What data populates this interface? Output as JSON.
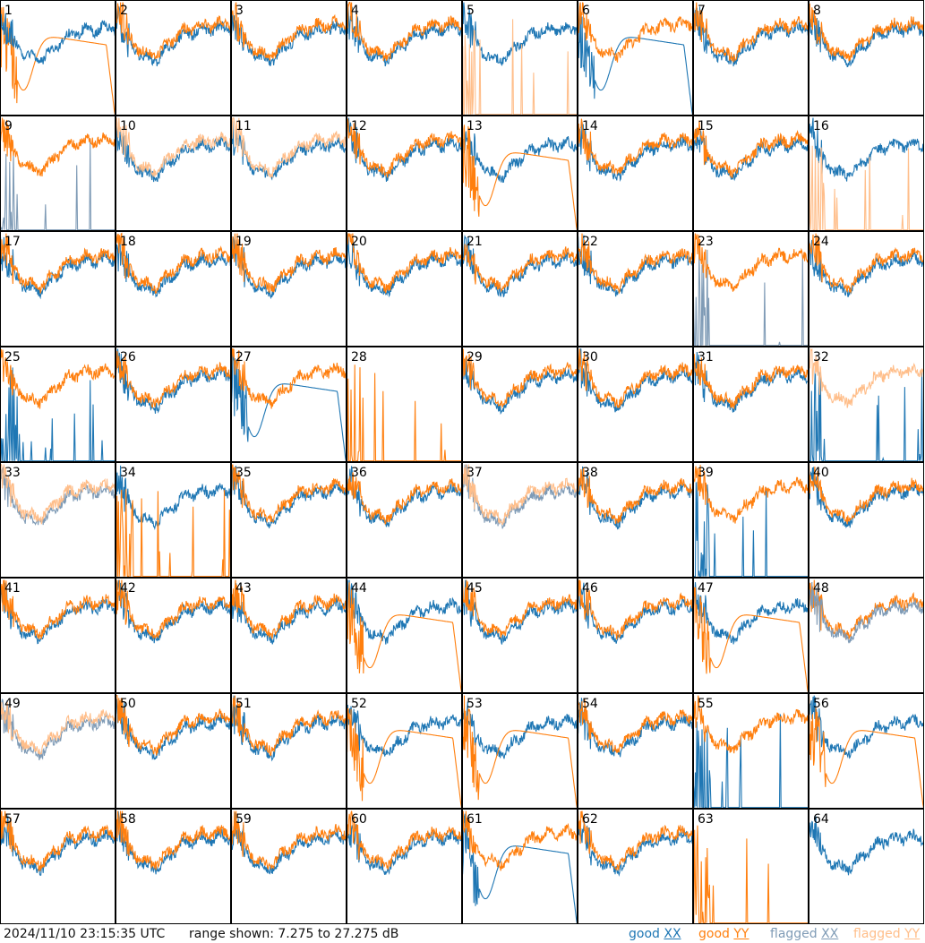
{
  "footer": {
    "timestamp": "2024/11/10 23:15:35 UTC",
    "range_text": "range shown: 7.275 to 27.275 dB"
  },
  "legend": [
    {
      "prefix": "good",
      "pol": "XX",
      "color": "#1f77b4"
    },
    {
      "prefix": "good",
      "pol": "YY",
      "color": "#ff7f0e"
    },
    {
      "prefix": "flagged",
      "pol": "XX",
      "color": "#7f9bb6"
    },
    {
      "prefix": "flagged",
      "pol": "YY",
      "color": "#ffbe8a"
    }
  ],
  "chart_data": {
    "type": "line",
    "layout": "8x8 small multiples of per-tile spectra",
    "ylim_db": [
      7.275,
      27.275
    ],
    "tiles": [
      {
        "id": "1",
        "xx": "good",
        "yy": "good",
        "xx_shape": "normal",
        "yy_shape": "dip",
        "first": "yy"
      },
      {
        "id": "2",
        "xx": "good",
        "yy": "good",
        "xx_shape": "normal",
        "yy_shape": "normal"
      },
      {
        "id": "3",
        "xx": "good",
        "yy": "good",
        "xx_shape": "normal",
        "yy_shape": "normal"
      },
      {
        "id": "4",
        "xx": "good",
        "yy": "good",
        "xx_shape": "normal",
        "yy_shape": "normal"
      },
      {
        "id": "5",
        "xx": "good",
        "yy": "flagged",
        "xx_shape": "normal",
        "yy_shape": "spikes"
      },
      {
        "id": "6",
        "xx": "good",
        "yy": "good",
        "xx_shape": "dip",
        "yy_shape": "normal"
      },
      {
        "id": "7",
        "xx": "good",
        "yy": "good",
        "xx_shape": "normal",
        "yy_shape": "normal"
      },
      {
        "id": "8",
        "xx": "good",
        "yy": "good",
        "xx_shape": "normal",
        "yy_shape": "normal"
      },
      {
        "id": "9",
        "xx": "flagged",
        "yy": "good",
        "xx_shape": "spikes",
        "yy_shape": "normal"
      },
      {
        "id": "10",
        "xx": "good",
        "yy": "flagged",
        "xx_shape": "normal",
        "yy_shape": "normal"
      },
      {
        "id": "11",
        "xx": "good",
        "yy": "flagged",
        "xx_shape": "normal",
        "yy_shape": "normal"
      },
      {
        "id": "12",
        "xx": "good",
        "yy": "good",
        "xx_shape": "normal",
        "yy_shape": "normal"
      },
      {
        "id": "13",
        "xx": "good",
        "yy": "good",
        "xx_shape": "normal",
        "yy_shape": "dip"
      },
      {
        "id": "14",
        "xx": "good",
        "yy": "good",
        "xx_shape": "normal",
        "yy_shape": "normal"
      },
      {
        "id": "15",
        "xx": "good",
        "yy": "good",
        "xx_shape": "normal",
        "yy_shape": "normal"
      },
      {
        "id": "16",
        "xx": "good",
        "yy": "flagged",
        "xx_shape": "normal",
        "yy_shape": "spikes"
      },
      {
        "id": "17",
        "xx": "good",
        "yy": "good",
        "xx_shape": "normal",
        "yy_shape": "normal"
      },
      {
        "id": "18",
        "xx": "good",
        "yy": "good",
        "xx_shape": "normal",
        "yy_shape": "normal"
      },
      {
        "id": "19",
        "xx": "good",
        "yy": "good",
        "xx_shape": "normal",
        "yy_shape": "normal"
      },
      {
        "id": "20",
        "xx": "good",
        "yy": "good",
        "xx_shape": "normal",
        "yy_shape": "normal"
      },
      {
        "id": "21",
        "xx": "good",
        "yy": "good",
        "xx_shape": "normal",
        "yy_shape": "normal"
      },
      {
        "id": "22",
        "xx": "good",
        "yy": "good",
        "xx_shape": "normal",
        "yy_shape": "normal"
      },
      {
        "id": "23",
        "xx": "flagged",
        "yy": "good",
        "xx_shape": "spikes",
        "yy_shape": "normal"
      },
      {
        "id": "24",
        "xx": "good",
        "yy": "good",
        "xx_shape": "normal",
        "yy_shape": "normal"
      },
      {
        "id": "25",
        "xx": "good",
        "yy": "good",
        "xx_shape": "spikes",
        "yy_shape": "normal"
      },
      {
        "id": "26",
        "xx": "good",
        "yy": "good",
        "xx_shape": "normal",
        "yy_shape": "normal"
      },
      {
        "id": "27",
        "xx": "good",
        "yy": "good",
        "xx_shape": "dip",
        "yy_shape": "normal"
      },
      {
        "id": "28",
        "xx": "good",
        "yy": "good",
        "xx_shape": "none",
        "yy_shape": "spikes"
      },
      {
        "id": "29",
        "xx": "good",
        "yy": "good",
        "xx_shape": "normal",
        "yy_shape": "normal"
      },
      {
        "id": "30",
        "xx": "good",
        "yy": "good",
        "xx_shape": "normal",
        "yy_shape": "normal"
      },
      {
        "id": "31",
        "xx": "good",
        "yy": "good",
        "xx_shape": "normal",
        "yy_shape": "normal"
      },
      {
        "id": "32",
        "xx": "good",
        "yy": "flagged",
        "xx_shape": "spikes",
        "yy_shape": "normal"
      },
      {
        "id": "33",
        "xx": "flagged",
        "yy": "flagged",
        "xx_shape": "normal",
        "yy_shape": "normal"
      },
      {
        "id": "34",
        "xx": "good",
        "yy": "good",
        "xx_shape": "normal",
        "yy_shape": "spikes"
      },
      {
        "id": "35",
        "xx": "good",
        "yy": "good",
        "xx_shape": "normal",
        "yy_shape": "normal"
      },
      {
        "id": "36",
        "xx": "good",
        "yy": "good",
        "xx_shape": "normal",
        "yy_shape": "normal"
      },
      {
        "id": "37",
        "xx": "flagged",
        "yy": "flagged",
        "xx_shape": "normal",
        "yy_shape": "normal"
      },
      {
        "id": "38",
        "xx": "good",
        "yy": "good",
        "xx_shape": "normal",
        "yy_shape": "normal"
      },
      {
        "id": "39",
        "xx": "good",
        "yy": "good",
        "xx_shape": "spikes",
        "yy_shape": "normal"
      },
      {
        "id": "40",
        "xx": "good",
        "yy": "good",
        "xx_shape": "normal",
        "yy_shape": "normal"
      },
      {
        "id": "41",
        "xx": "good",
        "yy": "good",
        "xx_shape": "normal",
        "yy_shape": "normal"
      },
      {
        "id": "42",
        "xx": "good",
        "yy": "good",
        "xx_shape": "normal",
        "yy_shape": "normal"
      },
      {
        "id": "43",
        "xx": "good",
        "yy": "good",
        "xx_shape": "normal",
        "yy_shape": "normal"
      },
      {
        "id": "44",
        "xx": "good",
        "yy": "good",
        "xx_shape": "normal",
        "yy_shape": "dip"
      },
      {
        "id": "45",
        "xx": "good",
        "yy": "good",
        "xx_shape": "normal",
        "yy_shape": "normal"
      },
      {
        "id": "46",
        "xx": "good",
        "yy": "good",
        "xx_shape": "normal",
        "yy_shape": "normal"
      },
      {
        "id": "47",
        "xx": "good",
        "yy": "good",
        "xx_shape": "normal",
        "yy_shape": "dip"
      },
      {
        "id": "48",
        "xx": "flagged",
        "yy": "good",
        "xx_shape": "normal",
        "yy_shape": "normal",
        "first": "yy"
      },
      {
        "id": "49",
        "xx": "flagged",
        "yy": "flagged",
        "xx_shape": "normal",
        "yy_shape": "normal"
      },
      {
        "id": "50",
        "xx": "good",
        "yy": "good",
        "xx_shape": "normal",
        "yy_shape": "normal"
      },
      {
        "id": "51",
        "xx": "good",
        "yy": "good",
        "xx_shape": "normal",
        "yy_shape": "normal"
      },
      {
        "id": "52",
        "xx": "good",
        "yy": "good",
        "xx_shape": "normal",
        "yy_shape": "dip"
      },
      {
        "id": "53",
        "xx": "good",
        "yy": "good",
        "xx_shape": "normal",
        "yy_shape": "dip"
      },
      {
        "id": "54",
        "xx": "good",
        "yy": "good",
        "xx_shape": "normal",
        "yy_shape": "normal"
      },
      {
        "id": "55",
        "xx": "good",
        "yy": "good",
        "xx_shape": "spikes",
        "yy_shape": "normal"
      },
      {
        "id": "56",
        "xx": "good",
        "yy": "good",
        "xx_shape": "normal",
        "yy_shape": "dip"
      },
      {
        "id": "57",
        "xx": "good",
        "yy": "good",
        "xx_shape": "normal",
        "yy_shape": "normal"
      },
      {
        "id": "58",
        "xx": "good",
        "yy": "good",
        "xx_shape": "normal",
        "yy_shape": "normal"
      },
      {
        "id": "59",
        "xx": "good",
        "yy": "good",
        "xx_shape": "normal",
        "yy_shape": "normal"
      },
      {
        "id": "60",
        "xx": "good",
        "yy": "good",
        "xx_shape": "normal",
        "yy_shape": "normal"
      },
      {
        "id": "61",
        "xx": "good",
        "yy": "good",
        "xx_shape": "dip",
        "yy_shape": "normal"
      },
      {
        "id": "62",
        "xx": "good",
        "yy": "good",
        "xx_shape": "normal",
        "yy_shape": "normal"
      },
      {
        "id": "63",
        "xx": "good",
        "yy": "good",
        "xx_shape": "none",
        "yy_shape": "spikes"
      },
      {
        "id": "64",
        "xx": "good",
        "yy": "good",
        "xx_shape": "normal",
        "yy_shape": "none"
      }
    ]
  }
}
